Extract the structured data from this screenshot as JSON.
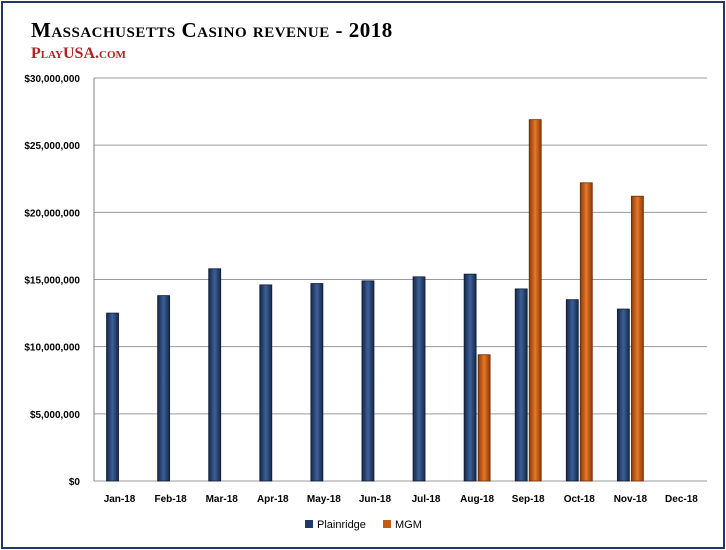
{
  "header": {
    "title": "Massachusetts Casino revenue - 2018",
    "brand": "PlayUSA.com"
  },
  "chart_data": {
    "type": "bar",
    "title": "Massachusetts Casino revenue - 2018",
    "categories": [
      "Jan-18",
      "Feb-18",
      "Mar-18",
      "Apr-18",
      "May-18",
      "Jun-18",
      "Jul-18",
      "Aug-18",
      "Sep-18",
      "Oct-18",
      "Nov-18",
      "Dec-18"
    ],
    "series": [
      {
        "name": "Plainridge",
        "color": "#1f3864",
        "values": [
          12500000,
          13800000,
          15800000,
          14600000,
          14700000,
          14900000,
          15200000,
          15400000,
          14300000,
          13500000,
          12800000,
          null
        ]
      },
      {
        "name": "MGM",
        "color": "#c55a11",
        "values": [
          null,
          null,
          null,
          null,
          null,
          null,
          null,
          9400000,
          26900000,
          22200000,
          21200000,
          null
        ]
      }
    ],
    "ylim": [
      0,
      30000000
    ],
    "yticks": [
      0,
      5000000,
      10000000,
      15000000,
      20000000,
      25000000,
      30000000
    ],
    "ytick_labels": [
      "$0",
      "$5,000,000",
      "$10,000,000",
      "$15,000,000",
      "$20,000,000",
      "$25,000,000",
      "$30,000,000"
    ],
    "grid": true,
    "legend": "bottom"
  }
}
